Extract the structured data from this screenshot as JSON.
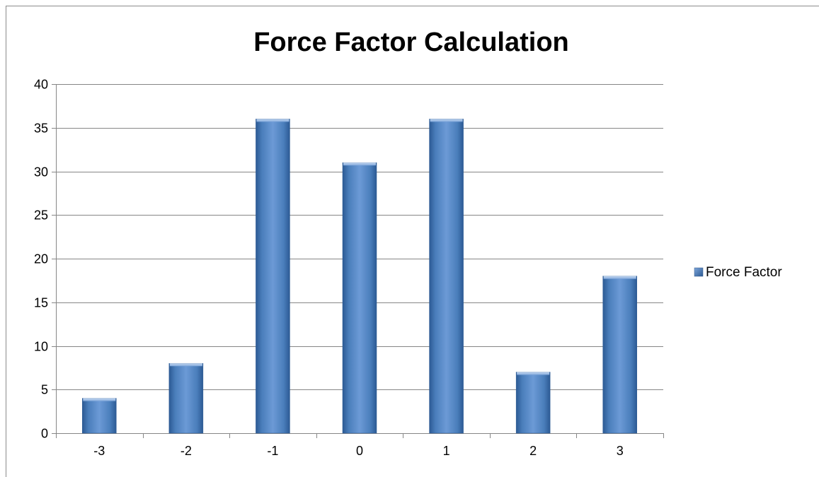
{
  "chart_data": {
    "type": "bar",
    "title": "Force Factor Calculation",
    "xlabel": "",
    "ylabel": "",
    "categories": [
      "-3",
      "-2",
      "-1",
      "0",
      "1",
      "2",
      "3"
    ],
    "series": [
      {
        "name": "Force Factor",
        "values": [
          4,
          8,
          36,
          31,
          36,
          7,
          18
        ],
        "color": "#4a7ebb"
      }
    ],
    "ylim": [
      0,
      40
    ],
    "yticks": [
      "0",
      "5",
      "10",
      "15",
      "20",
      "25",
      "30",
      "35",
      "40"
    ],
    "grid": true,
    "legend_position": "right"
  }
}
